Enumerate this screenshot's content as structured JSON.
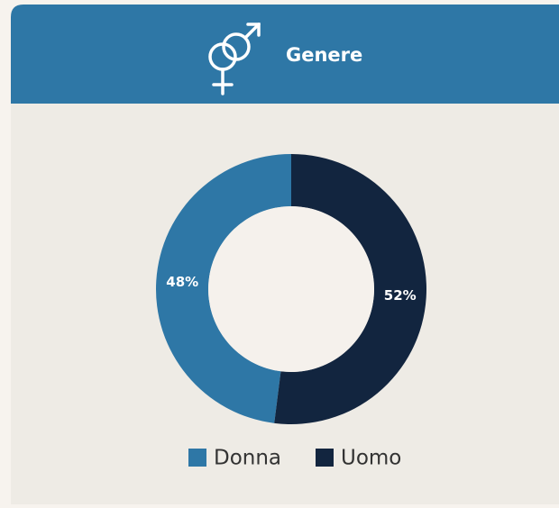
{
  "chart_data": {
    "type": "donut",
    "title": "Genere",
    "categories": [
      "Donna",
      "Uomo"
    ],
    "values": [
      48,
      52
    ],
    "value_labels": [
      "48%",
      "52%"
    ],
    "colors": [
      "#2e77a6",
      "#12253f"
    ],
    "legend": "bottom"
  }
}
